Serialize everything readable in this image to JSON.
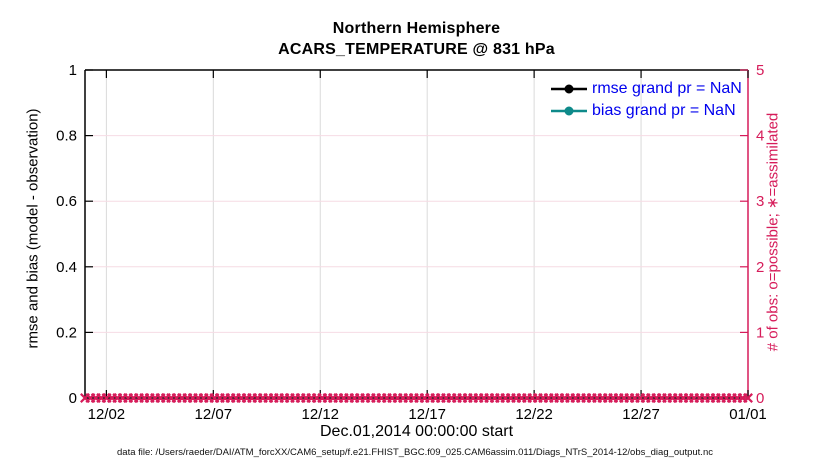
{
  "chart_data": {
    "type": "line",
    "title": "Northern Hemisphere",
    "subtitle": "ACARS_TEMPERATURE @ 831 hPa",
    "xlabel": "Dec.01,2014 00:00:00 start",
    "ylabel_left": "rmse and bias (model - observation)",
    "ylabel_right": "# of obs: o=possible; ∗=assimilated",
    "x_tick_labels": [
      "12/02",
      "12/07",
      "12/12",
      "12/17",
      "12/22",
      "12/27",
      "01/01"
    ],
    "x_tick_days": [
      1,
      6,
      11,
      16,
      21,
      26,
      31
    ],
    "x_span_days": 31,
    "y_left_tick_labels": [
      "0",
      "0.2",
      "0.4",
      "0.6",
      "0.8",
      "1"
    ],
    "y_right_tick_labels": [
      "0",
      "1",
      "2",
      "3",
      "4",
      "5"
    ],
    "ylim_left": [
      0,
      1
    ],
    "ylim_right": [
      0,
      5
    ],
    "grid": true,
    "legend_position": "top-right-inside",
    "series": [
      {
        "name": "rmse grand pr = NaN",
        "color": "#000000",
        "marker": "circle",
        "axis": "left",
        "values": "NaN"
      },
      {
        "name": "bias grand pr = NaN",
        "color": "#0e8a8a",
        "marker": "circle",
        "axis": "left",
        "values": "NaN"
      },
      {
        "name": "assimilated observation count",
        "color": "#d61c5a",
        "marker": "x",
        "axis": "right",
        "y_value": 0,
        "marker_count": 124
      }
    ],
    "caption": "data file: /Users/raeder/DAI/ATM_forcXX/CAM6_setup/f.e21.FHIST_BGC.f09_025.CAM6assim.011/Diags_NTrS_2014-12/obs_diag_output.nc"
  },
  "colors": {
    "black": "#000000",
    "pink": "#d61c5a",
    "pink_grid": "#f6dbe4",
    "gray_grid": "#dadada",
    "teal": "#0e8a8a",
    "legend_text": "#0000ee",
    "background": "#ffffff"
  }
}
